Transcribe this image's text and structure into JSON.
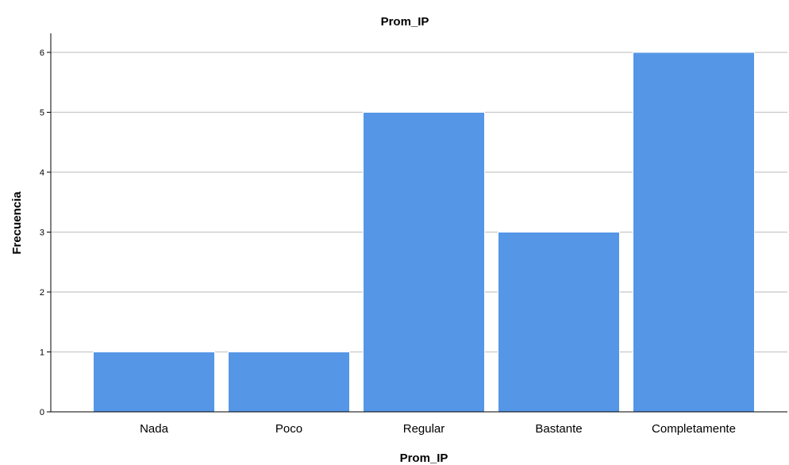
{
  "chart_data": {
    "type": "bar",
    "title": "Prom_IP",
    "xlabel": "Prom_IP",
    "ylabel": "Frecuencia",
    "categories": [
      "Nada",
      "Poco",
      "Regular",
      "Bastante",
      "Completamente"
    ],
    "values": [
      1,
      1,
      5,
      3,
      6
    ],
    "ylim": [
      0,
      6.3
    ],
    "yticks": [
      "0",
      "1",
      "2",
      "3",
      "4",
      "5",
      "6"
    ],
    "grid": true,
    "bar_color": "#5596e6",
    "grid_color": "#c8c8c8"
  }
}
